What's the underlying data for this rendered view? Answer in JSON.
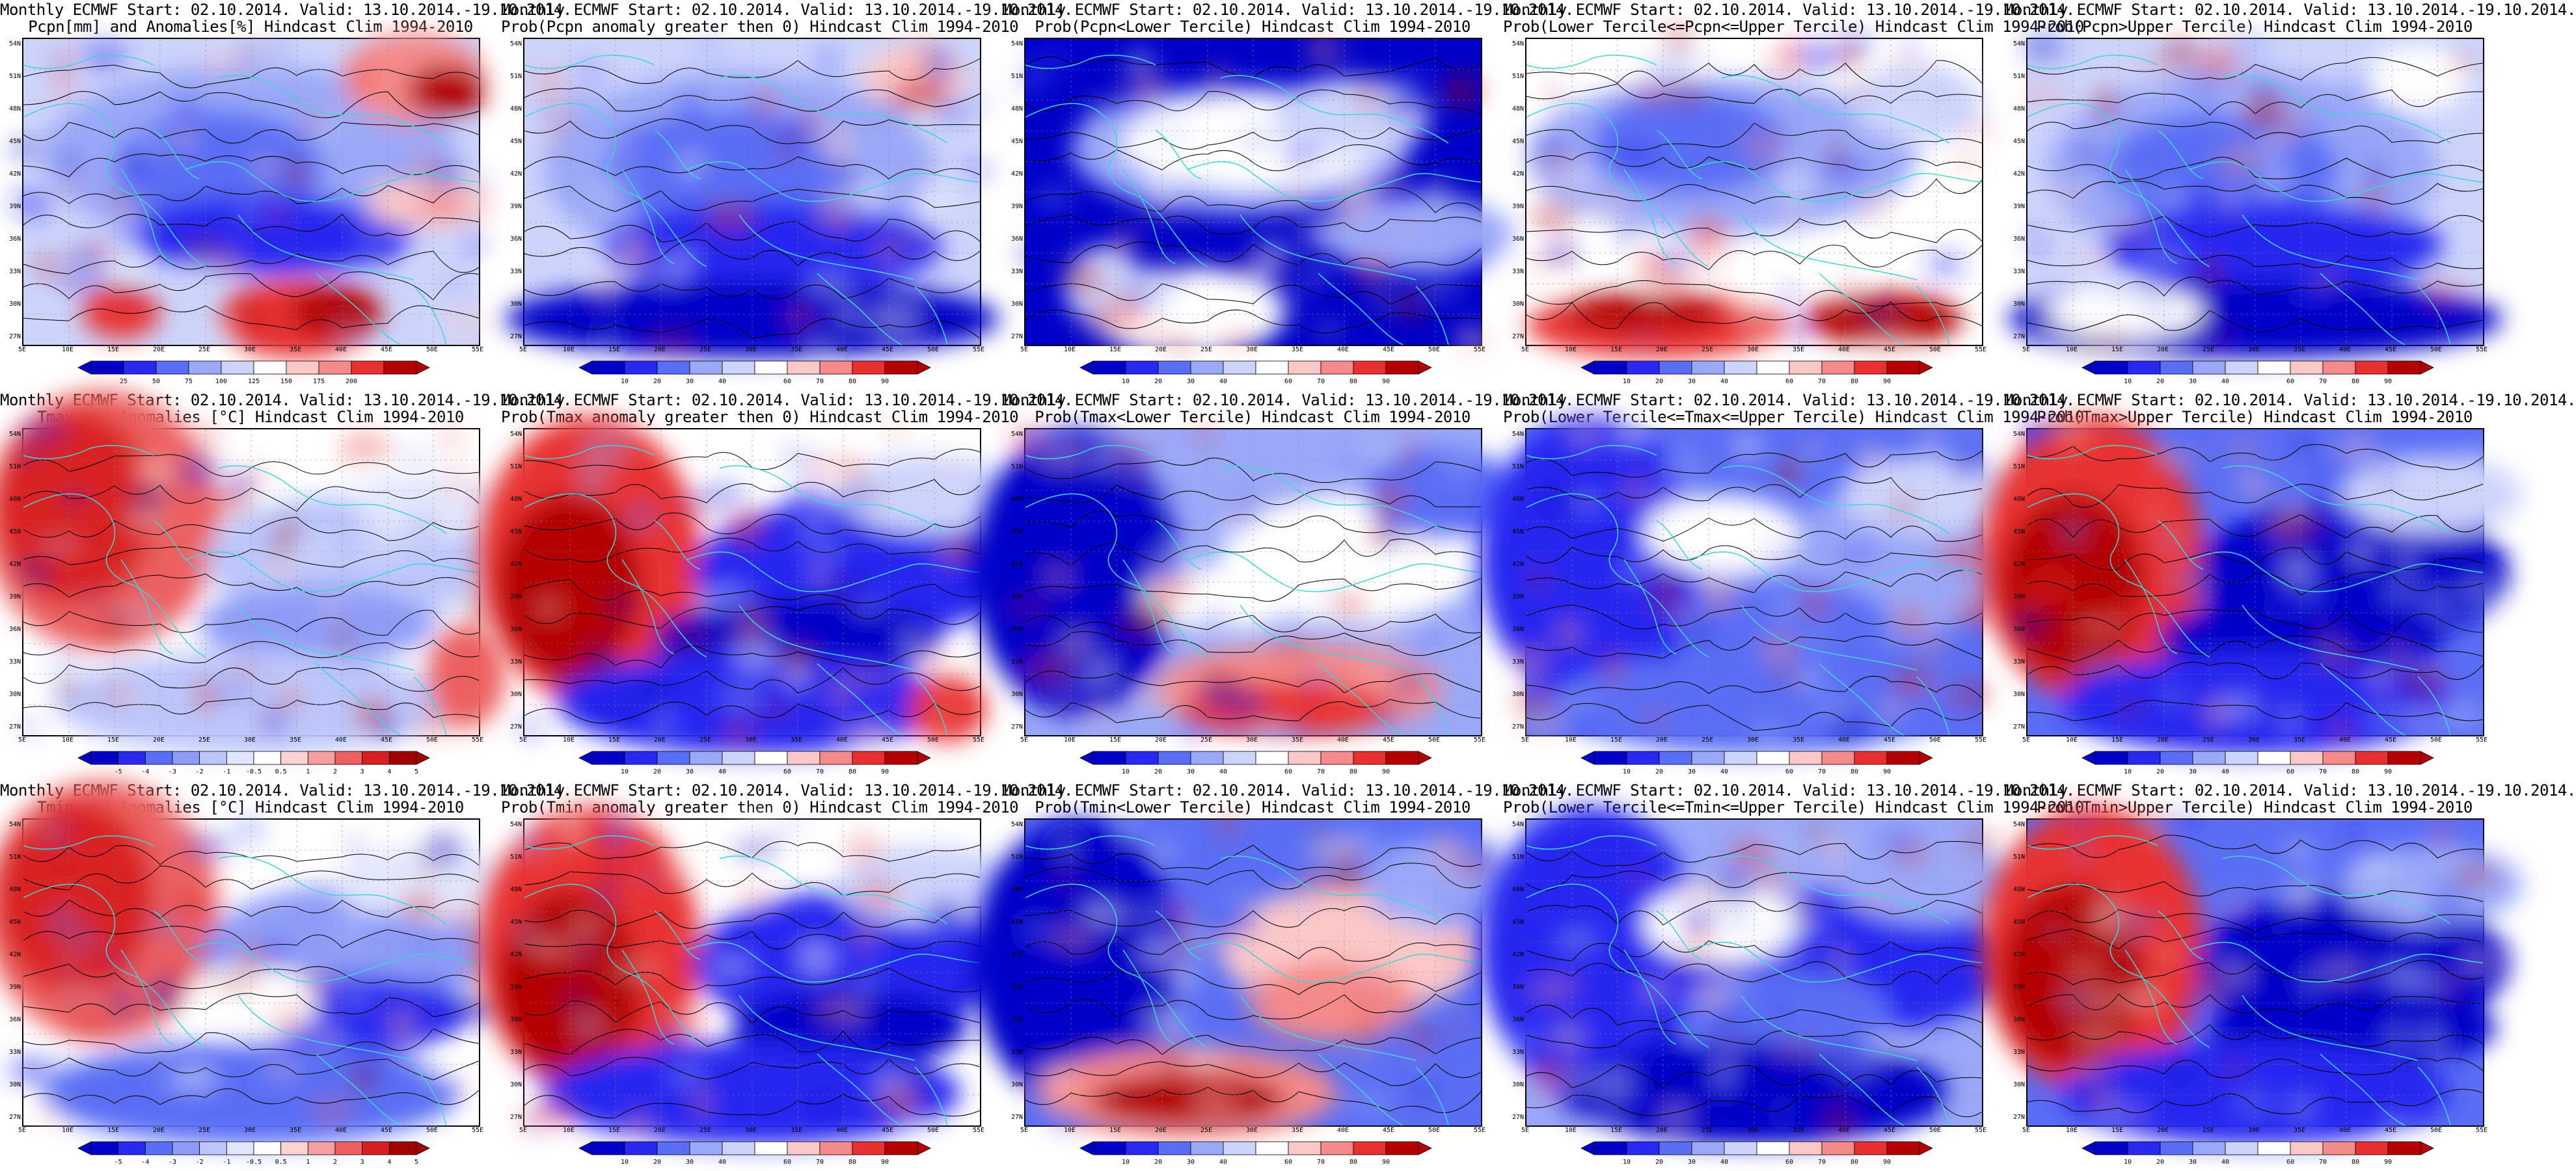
{
  "panels": [
    {
      "title1": "Monthly ECMWF Start: 02.10.2014. Valid: 13.10.2014.-19.10.2014.",
      "title2": "Pcpn[mm] and Anomalies[%] Hindcast Clim 1994-2010",
      "colorbar": {
        "type": "pcpn",
        "labels": [
          "25",
          "50",
          "75",
          "100",
          "125",
          "150",
          "175",
          "200"
        ]
      },
      "scheme": "pcpn"
    },
    {
      "title1": "Monthly ECMWF Start: 02.10.2014. Valid: 13.10.2014.-19.10.2014.",
      "title2": "Prob(Pcpn anomaly greater then 0) Hindcast Clim 1994-2010",
      "colorbar": {
        "type": "prob",
        "labels": [
          "10",
          "20",
          "30",
          "40",
          "60",
          "70",
          "80",
          "90"
        ]
      },
      "scheme": "pcpn_prob"
    },
    {
      "title1": "Monthly ECMWF Start: 02.10.2014. Valid: 13.10.2014.-19.10.2014.",
      "title2": "Prob(Pcpn<Lower Tercile) Hindcast Clim 1994-2010",
      "colorbar": {
        "type": "prob",
        "labels": [
          "10",
          "20",
          "30",
          "40",
          "60",
          "70",
          "80",
          "90"
        ]
      },
      "scheme": "pcpn_low"
    },
    {
      "title1": "Monthly ECMWF Start: 02.10.2014. Valid: 13.10.2014.-19.10.2014.",
      "title2": "Prob(Lower Tercile<=Pcpn<=Upper Tercile) Hindcast Clim 1994-2010",
      "colorbar": {
        "type": "prob",
        "labels": [
          "10",
          "20",
          "30",
          "40",
          "60",
          "70",
          "80",
          "90"
        ]
      },
      "scheme": "pcpn_mid"
    },
    {
      "title1": "Monthly ECMWF Start: 02.10.2014. Valid: 13.10.2014.-19.10.2014.",
      "title2": "Prob(Pcpn>Upper Tercile) Hindcast Clim 1994-2010",
      "colorbar": {
        "type": "prob",
        "labels": [
          "10",
          "20",
          "30",
          "40",
          "60",
          "70",
          "80",
          "90"
        ]
      },
      "scheme": "pcpn_high"
    },
    {
      "title1": "Monthly ECMWF Start: 02.10.2014. Valid: 13.10.2014.-19.10.2014.",
      "title2": "Tmax and Anomalies [°C] Hindcast Clim 1994-2010",
      "colorbar": {
        "type": "anom",
        "labels": [
          "-5",
          "-4",
          "-3",
          "-2",
          "-1",
          "-0.5",
          "0.5",
          "1",
          "2",
          "3",
          "4",
          "5"
        ]
      },
      "scheme": "tmax_anom"
    },
    {
      "title1": "Monthly ECMWF Start: 02.10.2014. Valid: 13.10.2014.-19.10.2014.",
      "title2": "Prob(Tmax anomaly greater then 0) Hindcast Clim 1994-2010",
      "colorbar": {
        "type": "prob",
        "labels": [
          "10",
          "20",
          "30",
          "40",
          "60",
          "70",
          "80",
          "90"
        ]
      },
      "scheme": "tmax_prob"
    },
    {
      "title1": "Monthly ECMWF Start: 02.10.2014. Valid: 13.10.2014.-19.10.2014.",
      "title2": "Prob(Tmax<Lower Tercile) Hindcast Clim 1994-2010",
      "colorbar": {
        "type": "prob",
        "labels": [
          "10",
          "20",
          "30",
          "40",
          "60",
          "70",
          "80",
          "90"
        ]
      },
      "scheme": "tmax_low"
    },
    {
      "title1": "Monthly ECMWF Start: 02.10.2014. Valid: 13.10.2014.-19.10.2014.",
      "title2": "Prob(Lower Tercile<=Tmax<=Upper Tercile) Hindcast Clim 1994-2010",
      "colorbar": {
        "type": "prob",
        "labels": [
          "10",
          "20",
          "30",
          "40",
          "60",
          "70",
          "80",
          "90"
        ]
      },
      "scheme": "tmax_mid"
    },
    {
      "title1": "Monthly ECMWF Start: 02.10.2014. Valid: 13.10.2014.-19.10.2014.",
      "title2": "Prob(Tmax>Upper Tercile) Hindcast Clim 1994-2010",
      "colorbar": {
        "type": "prob",
        "labels": [
          "10",
          "20",
          "30",
          "40",
          "60",
          "70",
          "80",
          "90"
        ]
      },
      "scheme": "tmax_high"
    },
    {
      "title1": "Monthly ECMWF Start: 02.10.2014. Valid: 13.10.2014.-19.10.2014.",
      "title2": "Tmin and Anomalies [°C] Hindcast Clim 1994-2010",
      "colorbar": {
        "type": "anom",
        "labels": [
          "-5",
          "-4",
          "-3",
          "-2",
          "-1",
          "-0.5",
          "0.5",
          "1",
          "2",
          "3",
          "4",
          "5"
        ]
      },
      "scheme": "tmin_anom"
    },
    {
      "title1": "Monthly ECMWF Start: 02.10.2014. Valid: 13.10.2014.-19.10.2014.",
      "title2": "Prob(Tmin anomaly greater then 0) Hindcast Clim 1994-2010",
      "colorbar": {
        "type": "prob",
        "labels": [
          "10",
          "20",
          "30",
          "40",
          "60",
          "70",
          "80",
          "90"
        ]
      },
      "scheme": "tmin_prob"
    },
    {
      "title1": "Monthly ECMWF Start: 02.10.2014. Valid: 13.10.2014.-19.10.2014.",
      "title2": "Prob(Tmin<Lower Tercile) Hindcast Clim 1994-2010",
      "colorbar": {
        "type": "prob",
        "labels": [
          "10",
          "20",
          "30",
          "40",
          "60",
          "70",
          "80",
          "90"
        ]
      },
      "scheme": "tmin_low"
    },
    {
      "title1": "Monthly ECMWF Start: 02.10.2014. Valid: 13.10.2014.-19.10.2014.",
      "title2": "Prob(Lower Tercile<=Tmin<=Upper Tercile) Hindcast Clim 1994-2010",
      "colorbar": {
        "type": "prob",
        "labels": [
          "10",
          "20",
          "30",
          "40",
          "60",
          "70",
          "80",
          "90"
        ]
      },
      "scheme": "tmin_mid"
    },
    {
      "title1": "Monthly ECMWF Start: 02.10.2014. Valid: 13.10.2014.-19.10.2014.",
      "title2": "Prob(Tmin>Upper Tercile) Hindcast Clim 1994-2010",
      "colorbar": {
        "type": "prob",
        "labels": [
          "10",
          "20",
          "30",
          "40",
          "60",
          "70",
          "80",
          "90"
        ]
      },
      "scheme": "tmin_high"
    }
  ],
  "lat_ticks": [
    "54N",
    "51N",
    "48N",
    "45N",
    "42N",
    "39N",
    "36N",
    "33N",
    "30N",
    "27N"
  ],
  "lon_ticks": [
    "5E",
    "10E",
    "15E",
    "20E",
    "25E",
    "30E",
    "35E",
    "40E",
    "45E",
    "50E",
    "55E"
  ],
  "colors": {
    "coastline": "#3fd6d6",
    "contour": "#000000",
    "prob_scale": [
      "#0000c8",
      "#2828f0",
      "#5a6ef5",
      "#9aa8f8",
      "#cdd4fb",
      "#ffffff",
      "#fbc8c8",
      "#f58a8a",
      "#e83030",
      "#b40000"
    ],
    "anom_scale": [
      "#0000c8",
      "#2828f0",
      "#5a6ef5",
      "#8e9cf7",
      "#bcc6fa",
      "#e2e6fd",
      "#ffffff",
      "#fbd2d2",
      "#f5a0a0",
      "#ec6060",
      "#d92020",
      "#a00000"
    ]
  }
}
